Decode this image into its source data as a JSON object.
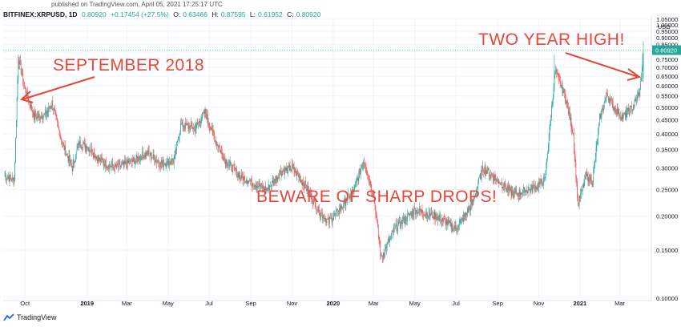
{
  "published": "published on TradingView.com, April 05, 2021 17:25:17 UTC",
  "header": {
    "symbol": "BITFINEX:XRPUSD, 1D",
    "price": "0.80920",
    "change": "+0.17454 (+27.5%)",
    "o_label": "O:",
    "o": "0.63466",
    "h_label": "H:",
    "h": "0.87595",
    "l_label": "L:",
    "l": "0.61952",
    "c_label": "C:",
    "c": "0.80920"
  },
  "branding": "TradingView",
  "colors": {
    "up": "#26a69a",
    "down": "#ef5350",
    "annotation": "#e8463b",
    "price_tag": "#26a69a"
  },
  "annotations": {
    "left": "SEPTEMBER 2018",
    "right": "TWO YEAR HIGH!",
    "center": "BEWARE OF SHARP DROPS!"
  },
  "chart_data": {
    "type": "candlestick",
    "title": "",
    "series": [
      {
        "name": "BITFINEX:XRPUSD, 1D"
      }
    ],
    "currency": "USD",
    "y_scale": "log",
    "ylim": [
      0.1,
      1.05
    ],
    "yticks": [
      "1.05000",
      "1.00000",
      "0.95000",
      "0.90000",
      "0.85000",
      "0.80000",
      "0.75000",
      "0.70000",
      "0.65000",
      "0.60000",
      "0.55000",
      "0.50000",
      "0.45000",
      "0.40000",
      "0.35000",
      "0.30000",
      "0.25000",
      "0.20000",
      "0.15000",
      "0.10000"
    ],
    "last_price": "0.80920",
    "xticks": [
      "Oct",
      "2019",
      "Mar",
      "May",
      "Jul",
      "Sep",
      "Nov",
      "2020",
      "Mar",
      "May",
      "Jul",
      "Sep",
      "Nov",
      "2021",
      "Mar"
    ],
    "approx_closes": [
      [
        "2018-09-01",
        0.28
      ],
      [
        "2018-09-15",
        0.27
      ],
      [
        "2018-09-21",
        0.76
      ],
      [
        "2018-10-01",
        0.58
      ],
      [
        "2018-10-15",
        0.46
      ],
      [
        "2018-11-01",
        0.47
      ],
      [
        "2018-11-10",
        0.52
      ],
      [
        "2018-11-25",
        0.37
      ],
      [
        "2018-12-10",
        0.3
      ],
      [
        "2018-12-20",
        0.37
      ],
      [
        "2019-01-01",
        0.36
      ],
      [
        "2019-01-20",
        0.32
      ],
      [
        "2019-02-10",
        0.3
      ],
      [
        "2019-03-01",
        0.31
      ],
      [
        "2019-04-01",
        0.34
      ],
      [
        "2019-04-20",
        0.31
      ],
      [
        "2019-05-10",
        0.32
      ],
      [
        "2019-05-20",
        0.43
      ],
      [
        "2019-06-10",
        0.42
      ],
      [
        "2019-06-25",
        0.48
      ],
      [
        "2019-07-10",
        0.38
      ],
      [
        "2019-07-25",
        0.32
      ],
      [
        "2019-08-15",
        0.28
      ],
      [
        "2019-09-10",
        0.26
      ],
      [
        "2019-09-25",
        0.25
      ],
      [
        "2019-10-15",
        0.29
      ],
      [
        "2019-11-01",
        0.3
      ],
      [
        "2019-11-20",
        0.26
      ],
      [
        "2019-12-10",
        0.21
      ],
      [
        "2019-12-25",
        0.19
      ],
      [
        "2020-01-10",
        0.21
      ],
      [
        "2020-02-01",
        0.25
      ],
      [
        "2020-02-15",
        0.32
      ],
      [
        "2020-03-01",
        0.24
      ],
      [
        "2020-03-12",
        0.14
      ],
      [
        "2020-04-01",
        0.18
      ],
      [
        "2020-05-01",
        0.21
      ],
      [
        "2020-06-01",
        0.2
      ],
      [
        "2020-07-01",
        0.18
      ],
      [
        "2020-07-25",
        0.22
      ],
      [
        "2020-08-10",
        0.3
      ],
      [
        "2020-09-01",
        0.27
      ],
      [
        "2020-09-25",
        0.24
      ],
      [
        "2020-10-20",
        0.25
      ],
      [
        "2020-11-10",
        0.27
      ],
      [
        "2020-11-20",
        0.5
      ],
      [
        "2020-11-25",
        0.68
      ],
      [
        "2020-12-10",
        0.55
      ],
      [
        "2020-12-22",
        0.4
      ],
      [
        "2020-12-29",
        0.22
      ],
      [
        "2021-01-10",
        0.28
      ],
      [
        "2021-01-20",
        0.27
      ],
      [
        "2021-01-30",
        0.45
      ],
      [
        "2021-02-10",
        0.56
      ],
      [
        "2021-02-20",
        0.5
      ],
      [
        "2021-03-05",
        0.46
      ],
      [
        "2021-03-20",
        0.5
      ],
      [
        "2021-03-31",
        0.57
      ],
      [
        "2021-04-05",
        0.8092
      ]
    ]
  }
}
